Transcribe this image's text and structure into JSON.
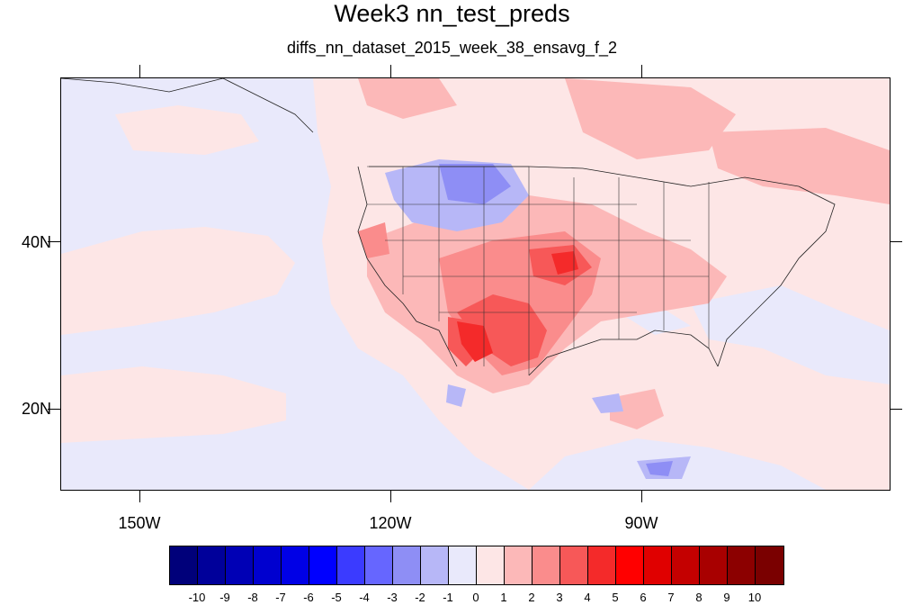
{
  "title": "Week3 nn_test_preds",
  "subtitle": "diffs_nn_dataset_2015_week_38_ensavg_f_2",
  "map": {
    "lon_labels": [
      "150W",
      "120W",
      "90W"
    ],
    "lat_labels": [
      "40N",
      "20N"
    ],
    "lon_range": [
      -160,
      -62
    ],
    "lat_range": [
      11,
      60
    ]
  },
  "colorbar": {
    "labels": [
      "-10",
      "-9",
      "-8",
      "-7",
      "-6",
      "-5",
      "-4",
      "-3",
      "-2",
      "-1",
      "0",
      "1",
      "2",
      "3",
      "4",
      "5",
      "6",
      "7",
      "8",
      "9",
      "10"
    ],
    "colors": [
      "#00007a",
      "#00009a",
      "#0000b5",
      "#0000cf",
      "#0000e6",
      "#0000ff",
      "#3b3bff",
      "#6666ff",
      "#8e8ef5",
      "#b7b7f7",
      "#e9e9fb",
      "#fde6e6",
      "#fcb8b8",
      "#fa8c8c",
      "#f75858",
      "#f42a2a",
      "#ff0000",
      "#e00000",
      "#c40000",
      "#a80000",
      "#8c0000",
      "#7a0000"
    ]
  }
}
